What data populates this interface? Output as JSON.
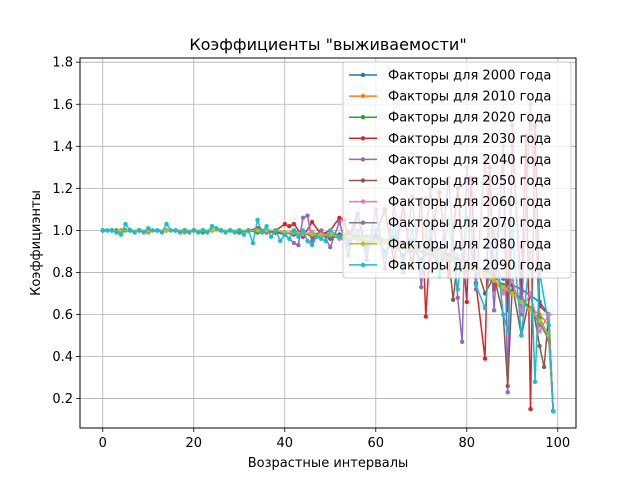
{
  "chart_data": {
    "type": "line",
    "title": "Коэффициенты \"выживаемости\"",
    "xlabel": "Возрастные интервалы",
    "ylabel": "Коэффициэнты",
    "xlim": [
      -5,
      104
    ],
    "ylim": [
      0.06,
      1.82
    ],
    "xticks": [
      0,
      20,
      40,
      60,
      80,
      100
    ],
    "yticks": [
      0.2,
      0.4,
      0.6,
      0.8,
      1.0,
      1.2,
      1.4,
      1.6,
      1.8
    ],
    "xtick_labels": [
      "0",
      "20",
      "40",
      "60",
      "80",
      "100"
    ],
    "ytick_labels": [
      "0.2",
      "0.4",
      "0.6",
      "0.8",
      "1.0",
      "1.2",
      "1.4",
      "1.6",
      "1.8"
    ],
    "grid": true,
    "legend_position": "top-right",
    "series": [
      {
        "name": "Факторы для 2000 года",
        "color": "#1f77b4",
        "x": [
          0,
          1,
          2,
          3,
          4,
          5,
          6,
          8,
          10,
          12,
          14,
          16,
          18,
          20,
          22,
          24,
          26,
          28,
          30,
          32,
          34,
          36,
          38,
          40,
          42,
          44,
          46,
          48,
          50,
          52,
          54,
          56,
          58,
          60,
          62,
          64,
          66,
          68,
          70,
          72,
          74,
          76,
          78,
          80,
          82,
          84,
          86,
          88,
          90,
          92,
          94,
          96,
          98,
          99
        ],
        "y": [
          1.0,
          1.0,
          1.0,
          1.0,
          1.0,
          1.0,
          1.0,
          1.0,
          1.0,
          1.0,
          1.0,
          1.0,
          1.0,
          1.0,
          1.0,
          1.0,
          1.0,
          1.0,
          1.0,
          1.0,
          1.0,
          1.0,
          0.99,
          0.99,
          0.99,
          0.99,
          0.98,
          0.99,
          0.98,
          0.98,
          0.97,
          0.97,
          0.96,
          0.96,
          0.95,
          0.95,
          0.94,
          0.93,
          0.92,
          0.91,
          0.9,
          0.88,
          0.87,
          0.85,
          0.83,
          0.81,
          0.79,
          0.77,
          0.74,
          0.72,
          0.69,
          0.66,
          0.6,
          0.14
        ]
      },
      {
        "name": "Факторы для 2010 года",
        "color": "#ff7f0e",
        "x": [
          0,
          2,
          4,
          6,
          8,
          10,
          12,
          14,
          16,
          18,
          20,
          22,
          24,
          26,
          28,
          30,
          32,
          34,
          36,
          38,
          40,
          42,
          44,
          46,
          48,
          50,
          52,
          54,
          56,
          58,
          60,
          62,
          64,
          66,
          68,
          70,
          72,
          74,
          76,
          78,
          80,
          82,
          84,
          86,
          88,
          90,
          92,
          94,
          96,
          98,
          99
        ],
        "y": [
          1.0,
          1.0,
          0.99,
          1.0,
          1.0,
          0.99,
          1.0,
          1.0,
          1.0,
          0.99,
          1.0,
          1.0,
          1.0,
          1.0,
          1.0,
          1.0,
          1.0,
          1.0,
          0.99,
          0.99,
          0.99,
          0.99,
          0.99,
          0.98,
          0.98,
          0.98,
          0.97,
          0.97,
          0.96,
          0.96,
          0.95,
          0.95,
          0.94,
          0.93,
          0.92,
          0.91,
          0.9,
          0.88,
          0.86,
          0.85,
          0.83,
          0.8,
          0.78,
          0.75,
          0.72,
          0.7,
          0.67,
          0.63,
          0.6,
          0.55,
          0.14
        ]
      },
      {
        "name": "Факторы для 2020 года",
        "color": "#2ca02c",
        "x": [
          0,
          2,
          4,
          6,
          8,
          10,
          12,
          14,
          16,
          18,
          20,
          22,
          24,
          26,
          28,
          30,
          32,
          34,
          36,
          38,
          40,
          42,
          44,
          46,
          48,
          50,
          52,
          54,
          56,
          58,
          60,
          62,
          64,
          66,
          68,
          70,
          72,
          74,
          76,
          78,
          80,
          82,
          84,
          86,
          88,
          90,
          92,
          94,
          96,
          98,
          99
        ],
        "y": [
          1.0,
          1.0,
          1.0,
          1.0,
          1.0,
          1.0,
          1.0,
          1.0,
          1.0,
          1.0,
          1.0,
          0.99,
          1.0,
          1.0,
          1.0,
          0.99,
          1.0,
          0.99,
          1.0,
          0.99,
          0.98,
          1.0,
          0.98,
          0.99,
          0.97,
          0.98,
          0.97,
          0.99,
          0.96,
          0.97,
          0.98,
          0.95,
          0.97,
          0.93,
          0.95,
          0.92,
          0.9,
          0.91,
          0.88,
          0.86,
          0.84,
          0.82,
          0.8,
          0.78,
          0.74,
          0.71,
          0.68,
          0.62,
          0.58,
          0.5,
          0.14
        ]
      },
      {
        "name": "Факторы для 2030 года",
        "color": "#d62728",
        "x": [
          0,
          2,
          4,
          6,
          8,
          10,
          12,
          14,
          16,
          18,
          20,
          22,
          24,
          26,
          28,
          30,
          32,
          34,
          36,
          38,
          40,
          41,
          42,
          44,
          46,
          48,
          50,
          52,
          53,
          54,
          56,
          58,
          60,
          62,
          64,
          66,
          68,
          70,
          71,
          72,
          74,
          76,
          78,
          80,
          81,
          82,
          84,
          85,
          86,
          88,
          89,
          90,
          92,
          93,
          94,
          95,
          96,
          98,
          99
        ],
        "y": [
          1.0,
          1.0,
          1.0,
          1.0,
          1.0,
          1.0,
          1.0,
          1.0,
          1.0,
          1.0,
          1.0,
          1.0,
          1.0,
          1.0,
          1.0,
          1.0,
          1.0,
          1.01,
          1.0,
          1.0,
          1.03,
          1.02,
          1.03,
          0.97,
          1.04,
          0.98,
          1.0,
          1.06,
          1.05,
          0.96,
          1.08,
          0.9,
          0.98,
          1.1,
          0.85,
          1.12,
          0.82,
          1.15,
          0.59,
          0.95,
          1.18,
          0.78,
          1.2,
          0.66,
          1.25,
          0.75,
          0.39,
          1.3,
          0.72,
          1.35,
          0.62,
          1.4,
          0.7,
          1.45,
          0.15,
          1.5,
          0.64,
          0.6,
          0.14
        ]
      },
      {
        "name": "Факторы для 2040 года",
        "color": "#9467bd",
        "x": [
          0,
          2,
          4,
          6,
          8,
          10,
          12,
          14,
          16,
          18,
          20,
          22,
          24,
          26,
          28,
          30,
          32,
          34,
          36,
          38,
          40,
          42,
          43,
          44,
          45,
          46,
          48,
          50,
          52,
          54,
          56,
          58,
          60,
          62,
          64,
          66,
          68,
          70,
          72,
          74,
          76,
          78,
          79,
          80,
          82,
          84,
          86,
          88,
          89,
          90,
          92,
          94,
          96,
          98,
          99
        ],
        "y": [
          1.0,
          1.0,
          1.0,
          1.0,
          1.0,
          1.0,
          1.0,
          1.0,
          1.0,
          1.0,
          1.0,
          1.0,
          1.0,
          1.0,
          1.0,
          1.0,
          1.0,
          1.0,
          0.99,
          1.0,
          0.98,
          0.94,
          0.93,
          1.06,
          1.07,
          0.95,
          1.0,
          0.92,
          1.04,
          0.88,
          1.08,
          0.86,
          1.1,
          0.82,
          1.12,
          0.8,
          1.16,
          0.73,
          1.2,
          0.78,
          1.25,
          0.68,
          0.47,
          1.3,
          0.72,
          1.35,
          0.62,
          1.4,
          0.23,
          1.5,
          0.6,
          1.6,
          0.55,
          0.5,
          0.14
        ]
      },
      {
        "name": "Факторы для 2050 года",
        "color": "#8c564b",
        "x": [
          0,
          2,
          4,
          6,
          8,
          10,
          12,
          14,
          16,
          18,
          20,
          22,
          24,
          26,
          28,
          30,
          32,
          34,
          36,
          38,
          40,
          42,
          44,
          46,
          48,
          50,
          52,
          54,
          56,
          58,
          60,
          62,
          64,
          66,
          68,
          70,
          72,
          74,
          76,
          77,
          78,
          80,
          82,
          84,
          86,
          88,
          89,
          90,
          92,
          94,
          96,
          97,
          98,
          99
        ],
        "y": [
          1.0,
          1.0,
          1.0,
          1.0,
          1.0,
          1.0,
          1.0,
          1.0,
          1.0,
          1.0,
          1.0,
          1.0,
          1.0,
          1.0,
          1.0,
          1.0,
          1.0,
          1.0,
          1.0,
          0.99,
          0.99,
          0.98,
          0.99,
          0.97,
          0.98,
          0.96,
          0.98,
          0.95,
          0.97,
          0.93,
          0.96,
          0.9,
          0.94,
          0.88,
          0.92,
          0.86,
          0.9,
          0.84,
          0.88,
          0.67,
          0.86,
          0.8,
          0.84,
          0.7,
          0.78,
          0.6,
          0.26,
          0.74,
          0.5,
          0.7,
          0.45,
          0.35,
          0.6,
          0.14
        ]
      },
      {
        "name": "Факторы для 2060 года",
        "color": "#e377c2",
        "x": [
          0,
          2,
          4,
          6,
          8,
          10,
          12,
          14,
          16,
          18,
          20,
          22,
          24,
          26,
          28,
          30,
          32,
          34,
          36,
          38,
          40,
          42,
          44,
          46,
          48,
          50,
          52,
          54,
          56,
          58,
          60,
          62,
          64,
          66,
          68,
          70,
          72,
          74,
          76,
          78,
          80,
          82,
          84,
          86,
          88,
          90,
          92,
          94,
          96,
          98,
          99
        ],
        "y": [
          1.0,
          1.0,
          1.0,
          1.0,
          1.0,
          1.0,
          1.0,
          1.0,
          1.0,
          1.0,
          1.0,
          1.0,
          1.0,
          1.0,
          1.0,
          1.0,
          1.0,
          1.0,
          1.0,
          1.0,
          0.99,
          0.99,
          0.98,
          0.99,
          0.97,
          0.98,
          0.96,
          0.97,
          0.95,
          0.96,
          0.94,
          0.95,
          0.93,
          0.94,
          0.9,
          0.92,
          0.88,
          0.9,
          0.86,
          0.88,
          0.82,
          0.85,
          0.78,
          0.82,
          0.7,
          0.76,
          0.62,
          0.7,
          0.52,
          0.6,
          0.14
        ]
      },
      {
        "name": "Факторы для 2070 года",
        "color": "#7f7f7f",
        "x": [
          0,
          2,
          4,
          6,
          8,
          10,
          12,
          14,
          16,
          18,
          20,
          22,
          24,
          26,
          28,
          30,
          32,
          34,
          36,
          38,
          40,
          42,
          44,
          46,
          48,
          50,
          52,
          54,
          56,
          58,
          60,
          62,
          64,
          66,
          68,
          70,
          72,
          74,
          76,
          78,
          80,
          82,
          84,
          86,
          88,
          90,
          92,
          94,
          96,
          98,
          99
        ],
        "y": [
          1.0,
          1.0,
          1.0,
          1.0,
          1.0,
          1.0,
          1.0,
          1.0,
          1.0,
          1.0,
          1.0,
          1.0,
          1.0,
          1.0,
          1.0,
          1.0,
          1.0,
          1.0,
          1.0,
          1.0,
          0.99,
          0.99,
          0.99,
          0.98,
          0.98,
          0.97,
          0.97,
          0.96,
          0.96,
          0.95,
          0.95,
          0.94,
          0.93,
          0.92,
          0.91,
          0.9,
          0.89,
          0.88,
          0.86,
          0.85,
          0.83,
          0.81,
          0.79,
          0.76,
          0.73,
          0.7,
          0.66,
          0.62,
          0.56,
          0.48,
          0.14
        ]
      },
      {
        "name": "Факторы для 2080 года",
        "color": "#bcbd22",
        "x": [
          0,
          2,
          4,
          6,
          8,
          10,
          12,
          14,
          16,
          18,
          20,
          22,
          24,
          26,
          28,
          30,
          32,
          34,
          36,
          38,
          40,
          42,
          44,
          46,
          48,
          50,
          52,
          54,
          56,
          58,
          60,
          62,
          64,
          66,
          68,
          70,
          72,
          74,
          76,
          78,
          80,
          82,
          84,
          86,
          88,
          90,
          92,
          94,
          96,
          98,
          99
        ],
        "y": [
          1.0,
          1.0,
          1.0,
          1.0,
          1.0,
          1.0,
          1.0,
          1.0,
          1.0,
          1.0,
          1.0,
          1.0,
          1.0,
          1.0,
          1.0,
          1.0,
          1.0,
          1.0,
          1.0,
          1.0,
          0.99,
          0.99,
          0.99,
          0.98,
          0.98,
          0.98,
          0.97,
          0.97,
          0.96,
          0.96,
          0.95,
          0.94,
          0.94,
          0.93,
          0.92,
          0.91,
          0.9,
          0.88,
          0.87,
          0.85,
          0.83,
          0.81,
          0.79,
          0.76,
          0.73,
          0.7,
          0.66,
          0.62,
          0.57,
          0.5,
          0.14
        ]
      },
      {
        "name": "Факторы для 2090 года",
        "color": "#17becf",
        "x": [
          0,
          1,
          2,
          3,
          4,
          5,
          6,
          7,
          8,
          9,
          10,
          11,
          12,
          13,
          14,
          15,
          16,
          17,
          18,
          19,
          20,
          21,
          22,
          23,
          24,
          25,
          26,
          27,
          28,
          29,
          30,
          31,
          32,
          33,
          34,
          35,
          36,
          37,
          38,
          39,
          40,
          41,
          42,
          43,
          44,
          45,
          46,
          47,
          48,
          49,
          50,
          52,
          54,
          56,
          58,
          60,
          62,
          64,
          66,
          68,
          70,
          72,
          74,
          76,
          78,
          80,
          82,
          84,
          86,
          88,
          89,
          90,
          92,
          94,
          95,
          96,
          98,
          99
        ],
        "y": [
          1.0,
          1.0,
          1.0,
          0.99,
          0.98,
          1.03,
          1.0,
          0.99,
          1.0,
          0.99,
          1.01,
          1.0,
          1.0,
          0.99,
          1.03,
          1.0,
          1.0,
          0.99,
          1.0,
          0.99,
          1.0,
          0.99,
          1.0,
          0.99,
          1.02,
          1.01,
          1.0,
          0.99,
          1.0,
          0.99,
          1.0,
          0.98,
          1.0,
          0.94,
          1.05,
          0.99,
          1.02,
          0.97,
          1.0,
          0.95,
          0.98,
          0.96,
          1.0,
          0.97,
          1.0,
          0.95,
          0.93,
          0.97,
          0.96,
          0.95,
          1.0,
          0.97,
          0.93,
          1.0,
          0.9,
          1.0,
          0.88,
          1.02,
          0.85,
          1.0,
          0.8,
          1.0,
          0.78,
          1.05,
          0.72,
          1.06,
          0.74,
          0.63,
          1.0,
          0.6,
          0.52,
          1.0,
          0.5,
          0.9,
          0.28,
          0.8,
          0.55,
          0.14
        ]
      }
    ]
  }
}
